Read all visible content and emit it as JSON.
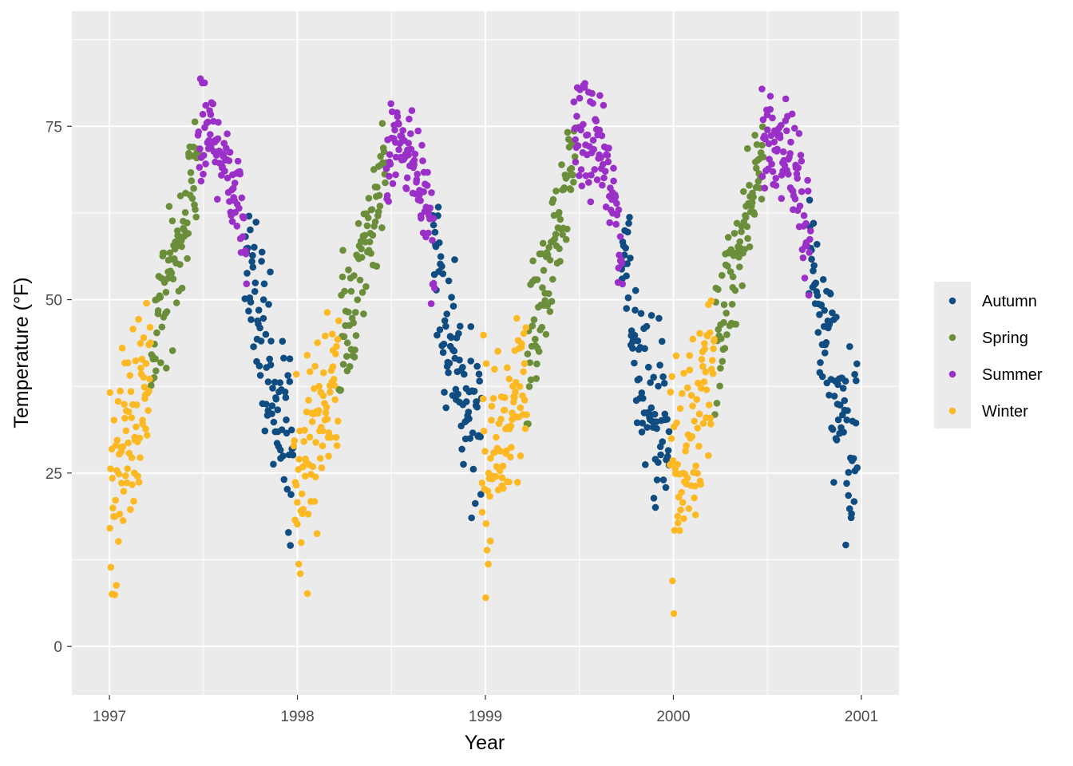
{
  "chart_data": {
    "type": "scatter",
    "title": "",
    "xlabel": "Year",
    "ylabel": "Temperature (°F)",
    "xlim": [
      1996.8,
      2001.2
    ],
    "ylim": [
      -7,
      91.6
    ],
    "x_ticks": [
      1997,
      1998,
      1999,
      2000,
      2001
    ],
    "x_tick_labels": [
      "1997",
      "1998",
      "1999",
      "2000",
      "2001"
    ],
    "y_ticks": [
      0,
      25,
      50,
      75
    ],
    "y_tick_labels": [
      "0",
      "25",
      "50",
      "75"
    ],
    "grid": true,
    "legend_position": "right",
    "series": [
      {
        "name": "Autumn",
        "color": "#0f4c81",
        "segments": [
          [
            1997.72,
            1997.98
          ],
          [
            1998.72,
            1998.98
          ],
          [
            1999.72,
            1999.98
          ],
          [
            2000.72,
            2000.98
          ]
        ]
      },
      {
        "name": "Spring",
        "color": "#6b8e3a",
        "segments": [
          [
            1997.22,
            1997.48
          ],
          [
            1998.22,
            1998.48
          ],
          [
            1999.22,
            1999.48
          ],
          [
            2000.22,
            2000.48
          ]
        ]
      },
      {
        "name": "Summer",
        "color": "#9b30c8",
        "segments": [
          [
            1997.47,
            1997.73
          ],
          [
            1998.47,
            1998.73
          ],
          [
            1999.47,
            1999.73
          ],
          [
            2000.47,
            2000.73
          ]
        ]
      },
      {
        "name": "Winter",
        "color": "#fdb924",
        "segments": [
          [
            1997.0,
            1997.22
          ],
          [
            1997.98,
            1998.22
          ],
          [
            1998.98,
            1999.22
          ],
          [
            1999.98,
            2000.22
          ]
        ]
      }
    ],
    "curve": {
      "year_knots": [
        1997.0,
        1997.1,
        1997.2,
        1997.3,
        1997.4,
        1997.5,
        1997.6,
        1997.7,
        1997.8,
        1997.9,
        1998.0
      ],
      "mean_temp_f": [
        22,
        30,
        40,
        50,
        62,
        74,
        72,
        62,
        45,
        33,
        26
      ],
      "spread_f": [
        12,
        10,
        8,
        7,
        6,
        6,
        5,
        6,
        8,
        9,
        11
      ]
    }
  }
}
